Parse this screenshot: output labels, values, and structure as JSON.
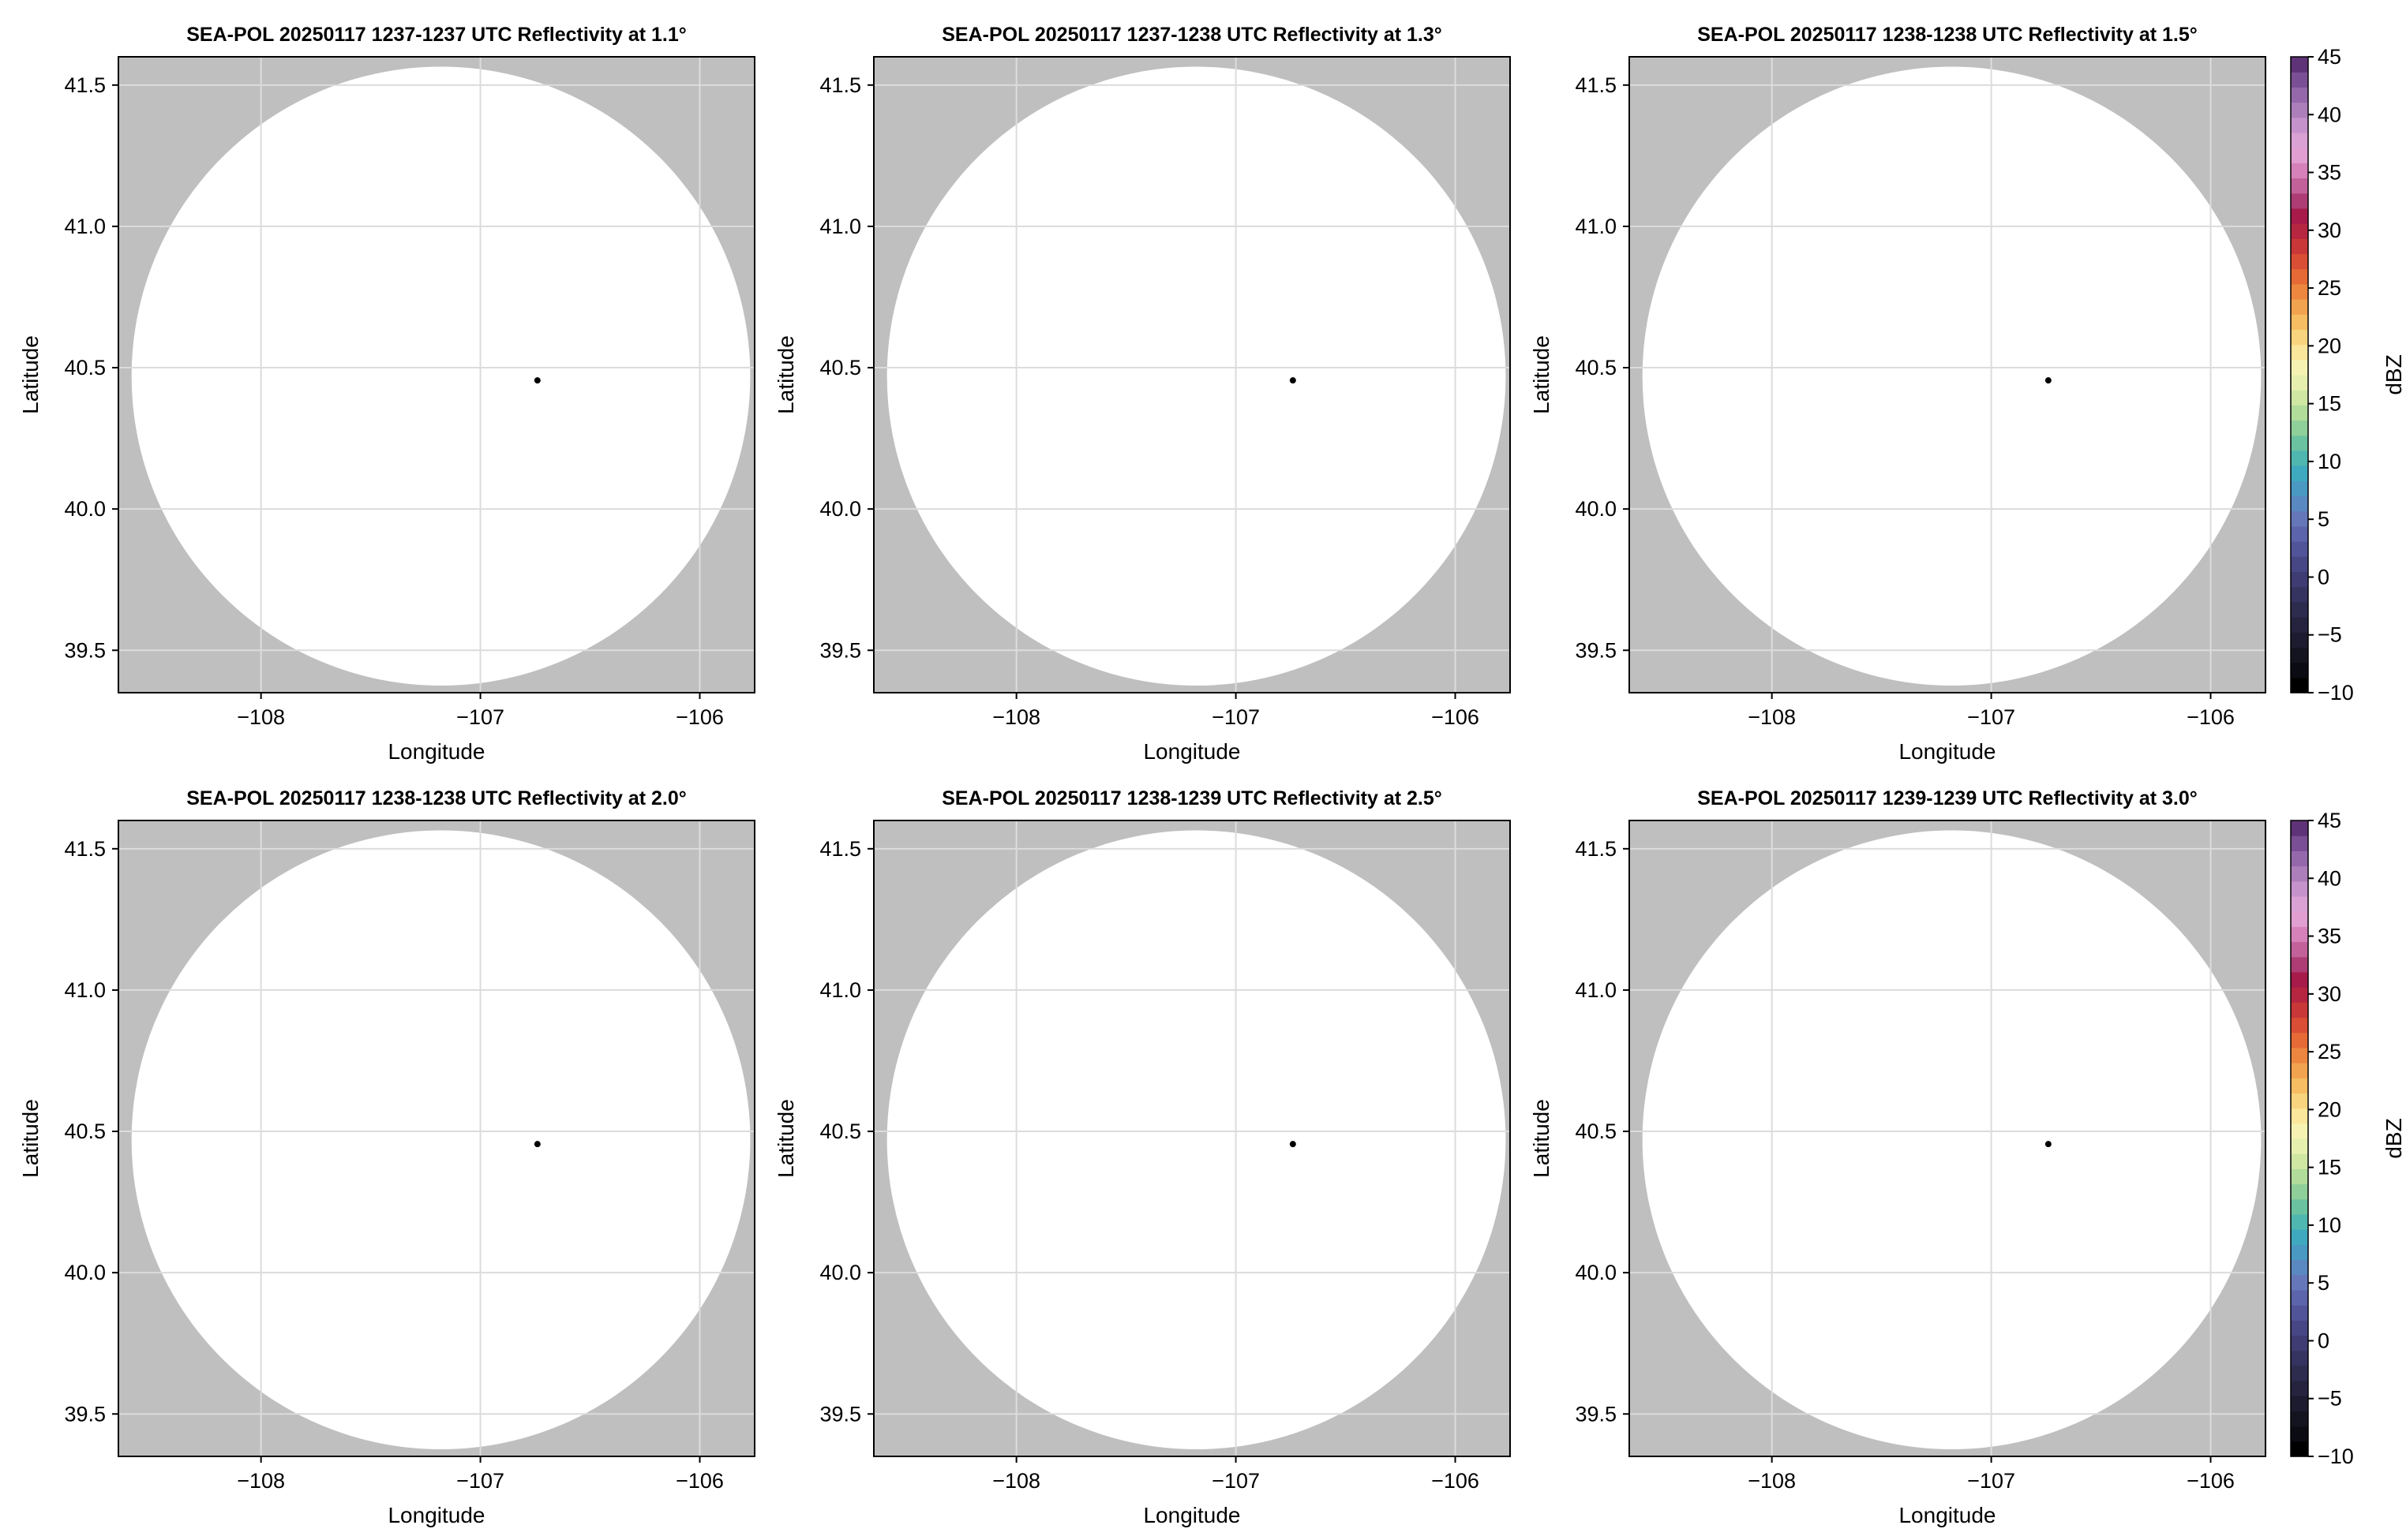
{
  "colors": {
    "background_fill": "#bfbfbf",
    "data_fill": "#ffffff",
    "grid": "#dcdcdc",
    "frame": "#000000",
    "radar_marker": "#000000"
  },
  "chart_data": [
    {
      "type": "heatmap",
      "title": "SEA-POL 20250117 1237-1237 UTC Reflectivity at 1.1°",
      "xlabel": "Longitude",
      "ylabel": "Latitude",
      "xlim": [
        -108.65,
        -105.75
      ],
      "ylim": [
        39.35,
        41.6
      ],
      "xticks": [
        -108,
        -107,
        -106
      ],
      "xtick_labels": [
        "−108",
        "−107",
        "−106"
      ],
      "yticks": [
        39.5,
        40.0,
        40.5,
        41.0,
        41.5
      ],
      "ytick_labels": [
        "39.5",
        "40.0",
        "40.5",
        "41.0",
        "41.5"
      ],
      "grid": true,
      "radar_site": {
        "lon": -106.74,
        "lat": 40.455
      },
      "coverage": {
        "center_lon": -107.18,
        "center_lat": 40.47,
        "lon_half_width": 1.41,
        "lat_half_width": 1.095
      },
      "colorbar": false
    },
    {
      "type": "heatmap",
      "title": "SEA-POL 20250117 1237-1238 UTC Reflectivity at 1.3°",
      "xlabel": "Longitude",
      "ylabel": "Latitude",
      "xlim": [
        -108.65,
        -105.75
      ],
      "ylim": [
        39.35,
        41.6
      ],
      "xticks": [
        -108,
        -107,
        -106
      ],
      "xtick_labels": [
        "−108",
        "−107",
        "−106"
      ],
      "yticks": [
        39.5,
        40.0,
        40.5,
        41.0,
        41.5
      ],
      "ytick_labels": [
        "39.5",
        "40.0",
        "40.5",
        "41.0",
        "41.5"
      ],
      "grid": true,
      "radar_site": {
        "lon": -106.74,
        "lat": 40.455
      },
      "coverage": {
        "center_lon": -107.18,
        "center_lat": 40.47,
        "lon_half_width": 1.41,
        "lat_half_width": 1.095
      },
      "colorbar": false
    },
    {
      "type": "heatmap",
      "title": "SEA-POL 20250117 1238-1238 UTC Reflectivity at 1.5°",
      "xlabel": "Longitude",
      "ylabel": "Latitude",
      "xlim": [
        -108.65,
        -105.75
      ],
      "ylim": [
        39.35,
        41.6
      ],
      "xticks": [
        -108,
        -107,
        -106
      ],
      "xtick_labels": [
        "−108",
        "−107",
        "−106"
      ],
      "yticks": [
        39.5,
        40.0,
        40.5,
        41.0,
        41.5
      ],
      "ytick_labels": [
        "39.5",
        "40.0",
        "40.5",
        "41.0",
        "41.5"
      ],
      "grid": true,
      "radar_site": {
        "lon": -106.74,
        "lat": 40.455
      },
      "coverage": {
        "center_lon": -107.18,
        "center_lat": 40.47,
        "lon_half_width": 1.41,
        "lat_half_width": 1.095
      },
      "colorbar": true
    },
    {
      "type": "heatmap",
      "title": "SEA-POL 20250117 1238-1238 UTC Reflectivity at 2.0°",
      "xlabel": "Longitude",
      "ylabel": "Latitude",
      "xlim": [
        -108.65,
        -105.75
      ],
      "ylim": [
        39.35,
        41.6
      ],
      "xticks": [
        -108,
        -107,
        -106
      ],
      "xtick_labels": [
        "−108",
        "−107",
        "−106"
      ],
      "yticks": [
        39.5,
        40.0,
        40.5,
        41.0,
        41.5
      ],
      "ytick_labels": [
        "39.5",
        "40.0",
        "40.5",
        "41.0",
        "41.5"
      ],
      "grid": true,
      "radar_site": {
        "lon": -106.74,
        "lat": 40.455
      },
      "coverage": {
        "center_lon": -107.18,
        "center_lat": 40.47,
        "lon_half_width": 1.41,
        "lat_half_width": 1.095
      },
      "colorbar": false
    },
    {
      "type": "heatmap",
      "title": "SEA-POL 20250117 1238-1239 UTC Reflectivity at 2.5°",
      "xlabel": "Longitude",
      "ylabel": "Latitude",
      "xlim": [
        -108.65,
        -105.75
      ],
      "ylim": [
        39.35,
        41.6
      ],
      "xticks": [
        -108,
        -107,
        -106
      ],
      "xtick_labels": [
        "−108",
        "−107",
        "−106"
      ],
      "yticks": [
        39.5,
        40.0,
        40.5,
        41.0,
        41.5
      ],
      "ytick_labels": [
        "39.5",
        "40.0",
        "40.5",
        "41.0",
        "41.5"
      ],
      "grid": true,
      "radar_site": {
        "lon": -106.74,
        "lat": 40.455
      },
      "coverage": {
        "center_lon": -107.18,
        "center_lat": 40.47,
        "lon_half_width": 1.41,
        "lat_half_width": 1.095
      },
      "colorbar": false
    },
    {
      "type": "heatmap",
      "title": "SEA-POL 20250117 1239-1239 UTC Reflectivity at 3.0°",
      "xlabel": "Longitude",
      "ylabel": "Latitude",
      "xlim": [
        -108.65,
        -105.75
      ],
      "ylim": [
        39.35,
        41.6
      ],
      "xticks": [
        -108,
        -107,
        -106
      ],
      "xtick_labels": [
        "−108",
        "−107",
        "−106"
      ],
      "yticks": [
        39.5,
        40.0,
        40.5,
        41.0,
        41.5
      ],
      "ytick_labels": [
        "39.5",
        "40.0",
        "40.5",
        "41.0",
        "41.5"
      ],
      "grid": true,
      "radar_site": {
        "lon": -106.74,
        "lat": 40.455
      },
      "coverage": {
        "center_lon": -107.18,
        "center_lat": 40.47,
        "lon_half_width": 1.41,
        "lat_half_width": 1.095
      },
      "colorbar": true
    }
  ],
  "colorbar": {
    "label": "dBZ",
    "range": [
      -10,
      45
    ],
    "ticks": [
      -10,
      -5,
      0,
      5,
      10,
      15,
      20,
      25,
      30,
      35,
      40,
      45
    ],
    "tick_labels": [
      "−10",
      "−5",
      "0",
      "5",
      "10",
      "15",
      "20",
      "25",
      "30",
      "35",
      "40",
      "45"
    ],
    "colors": [
      "#000000",
      "#0b0b13",
      "#141420",
      "#1c1b2f",
      "#25233e",
      "#2d2b4e",
      "#35335f",
      "#3e3c72",
      "#474786",
      "#52549a",
      "#5c64ac",
      "#6577b8",
      "#5a88c0",
      "#4a99c3",
      "#3fa9bf",
      "#4fb6b0",
      "#6bc2a0",
      "#8fcf99",
      "#b1dc9a",
      "#cfe7a3",
      "#e6efae",
      "#f6f3b2",
      "#fbe79c",
      "#f9d47e",
      "#f6bd62",
      "#f2a34f",
      "#ed8740",
      "#e56a36",
      "#d94e34",
      "#c93738",
      "#b72640",
      "#a71b4a",
      "#ad3d74",
      "#c2619a",
      "#d681ba",
      "#e19ed0",
      "#d9a1d4",
      "#c592cb",
      "#ac7fbb",
      "#9468ab",
      "#7a4f95",
      "#5e3378"
    ]
  }
}
